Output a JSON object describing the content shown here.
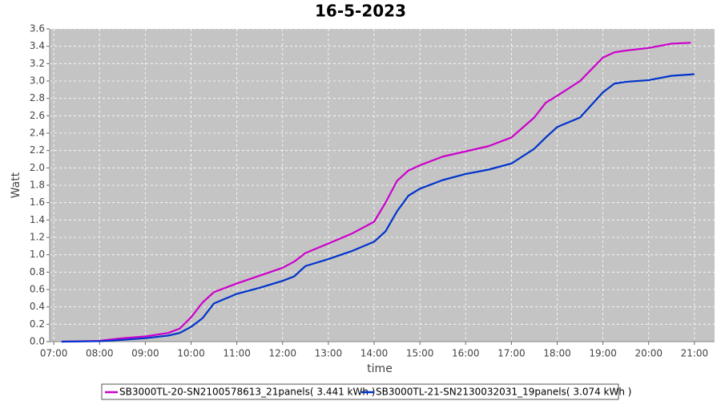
{
  "chart_data": {
    "type": "line",
    "title": "16-5-2023",
    "x_label": "time",
    "y_label": "Watt",
    "x": [
      7.17,
      8,
      8.5,
      9,
      9.5,
      9.75,
      10,
      10.25,
      10.5,
      11,
      11.5,
      12,
      12.25,
      12.5,
      13,
      13.5,
      14,
      14.25,
      14.5,
      14.75,
      15,
      15.5,
      16,
      16.5,
      17,
      17.5,
      17.75,
      18,
      18.5,
      19,
      19.25,
      19.5,
      20,
      20.5,
      20.92,
      21
    ],
    "series": [
      {
        "name": "SB3000TL-20-SN2100578613_21panels( 3.441 kWh )",
        "color": "#cc00cc",
        "values": [
          0,
          0.01,
          0.04,
          0.06,
          0.1,
          0.15,
          0.28,
          0.45,
          0.57,
          0.67,
          0.76,
          0.85,
          0.92,
          1.02,
          1.13,
          1.24,
          1.38,
          1.6,
          1.85,
          1.97,
          2.03,
          2.13,
          2.19,
          2.25,
          2.35,
          2.58,
          2.75,
          2.83,
          3.0,
          3.27,
          3.33,
          3.35,
          3.38,
          3.43,
          3.44,
          null
        ]
      },
      {
        "name": "SB3000TL-21-SN2130032031_19panels( 3.074 kWh )",
        "color": "#0033cc",
        "values": [
          0,
          0.005,
          0.02,
          0.04,
          0.07,
          0.1,
          0.17,
          0.27,
          0.44,
          0.55,
          0.62,
          0.7,
          0.75,
          0.87,
          0.95,
          1.04,
          1.15,
          1.27,
          1.5,
          1.68,
          1.76,
          1.86,
          1.93,
          1.98,
          2.05,
          2.22,
          2.35,
          2.47,
          2.58,
          2.87,
          2.97,
          2.99,
          3.01,
          3.06,
          3.075,
          3.08
        ]
      }
    ],
    "xlim": [
      6.91,
      21.44
    ],
    "ylim": [
      0,
      3.6
    ],
    "xticks": [
      {
        "value": 7,
        "label": "07:00"
      },
      {
        "value": 8,
        "label": "08:00"
      },
      {
        "value": 9,
        "label": "09:00"
      },
      {
        "value": 10,
        "label": "10:00"
      },
      {
        "value": 11,
        "label": "11:00"
      },
      {
        "value": 12,
        "label": "12:00"
      },
      {
        "value": 13,
        "label": "13:00"
      },
      {
        "value": 14,
        "label": "14:00"
      },
      {
        "value": 15,
        "label": "15:00"
      },
      {
        "value": 16,
        "label": "16:00"
      },
      {
        "value": 17,
        "label": "17:00"
      },
      {
        "value": 18,
        "label": "18:00"
      },
      {
        "value": 19,
        "label": "19:00"
      },
      {
        "value": 20,
        "label": "20:00"
      },
      {
        "value": 21,
        "label": "21:00"
      }
    ],
    "yticks": [
      {
        "value": 0,
        "label": "0.0"
      },
      0.2,
      0.4,
      0.6,
      0.8,
      {
        "value": 1,
        "label": "1.0"
      },
      1.2,
      1.4,
      1.6,
      1.8,
      {
        "value": 2,
        "label": "2.0"
      },
      2.2,
      2.4,
      2.6,
      2.8,
      {
        "value": 3,
        "label": "3.0"
      },
      3.2,
      3.4,
      3.6
    ],
    "grid": true,
    "legend": "bottom"
  }
}
